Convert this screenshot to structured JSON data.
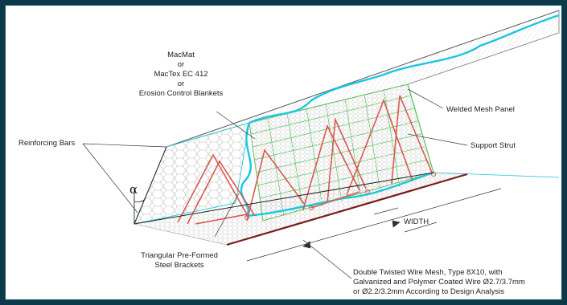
{
  "labels": {
    "blanket": [
      "MacMat",
      "or",
      "MacTex EC 412",
      "or",
      "Erosion Control Blankets"
    ],
    "welded_mesh": "Welded Mesh Panel",
    "support_strut": "Support Strut",
    "reinforcing_bars": "Reinforcing Bars",
    "alpha": "α",
    "width": "WIDTH",
    "brackets": [
      "Triangular Pre-Formed",
      "Steel Brackets"
    ],
    "double_twisted": [
      "Double Twisted Wire Mesh, Type 8X10, with",
      "Galvanized and Polymer Coated  Wire Ø2.7/3.7mm",
      "or Ø2.2/3.2mm According to  Design Analysis"
    ]
  },
  "colors": {
    "background": "#0d3a4a",
    "blanket_edge": "#19c7e0",
    "welded_mesh": "#5fc25f",
    "bracket": "#d85a50",
    "base_line": "#7a1a1a",
    "outline": "#666666"
  }
}
